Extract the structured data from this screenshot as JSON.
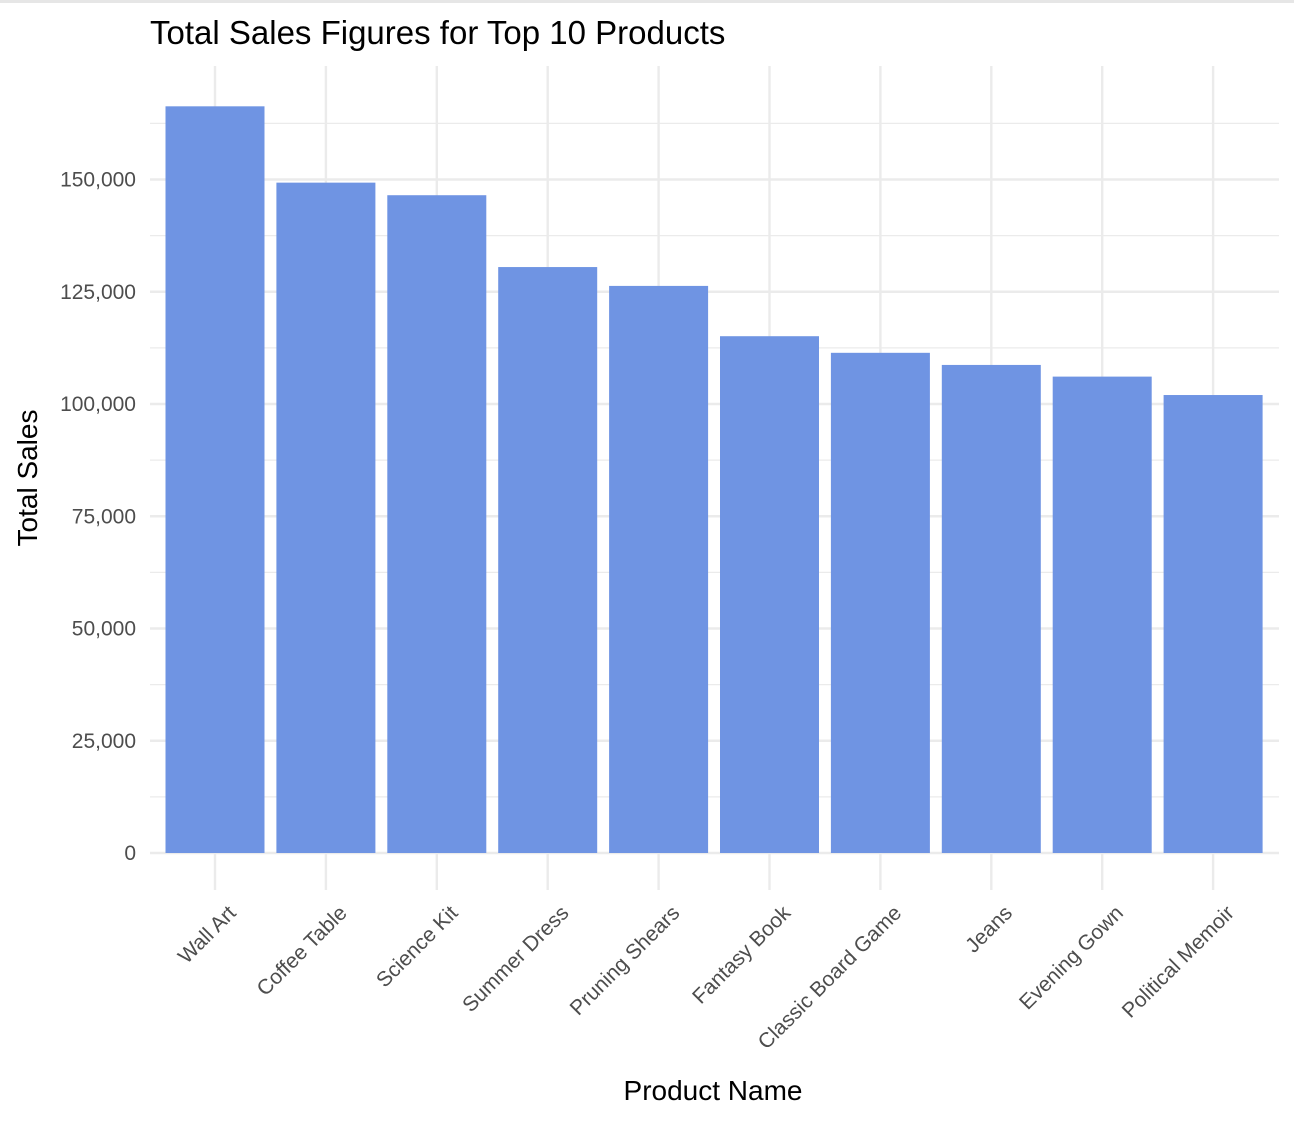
{
  "chart_data": {
    "type": "bar",
    "title": "Total Sales Figures for Top 10 Products",
    "xlabel": "Product Name",
    "ylabel": "Total Sales",
    "categories": [
      "Wall Art",
      "Coffee Table",
      "Science Kit",
      "Summer Dress",
      "Pruning Shears",
      "Fantasy Book",
      "Classic Board Game",
      "Jeans",
      "Evening Gown",
      "Political Memoir"
    ],
    "values": [
      166300,
      149300,
      146500,
      130500,
      126300,
      115100,
      111400,
      108700,
      106100,
      102000
    ],
    "ylim": [
      0,
      175000
    ],
    "yticks": [
      0,
      25000,
      50000,
      75000,
      100000,
      125000,
      150000
    ],
    "ytick_labels": [
      "0",
      "25,000",
      "50,000",
      "75,000",
      "100,000",
      "125,000",
      "150,000"
    ],
    "grid": true,
    "bar_color": "#6f94e3",
    "grid_color": "#ebebeb"
  }
}
